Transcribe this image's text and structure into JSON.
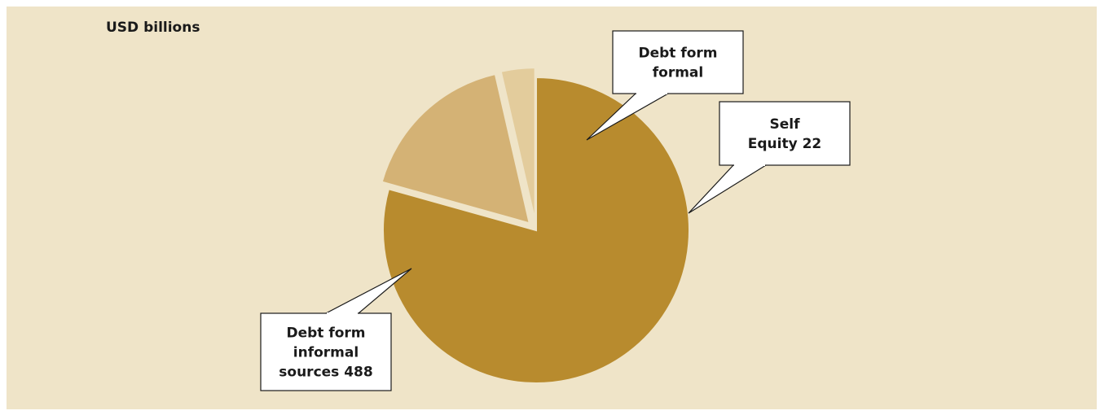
{
  "chart_data": {
    "type": "pie",
    "unit_label": "USD billions",
    "slices": [
      {
        "name": "Debt form informal sources",
        "value": 488,
        "color": "#b88b2e",
        "exploded": false,
        "label_lines": [
          "Debt form",
          "informal",
          "sources 488"
        ]
      },
      {
        "name": "Debt form formal",
        "value": 105,
        "color": "#d4b275",
        "exploded": true,
        "label_lines": [
          "Debt form",
          "formal"
        ]
      },
      {
        "name": "Self Equity",
        "value": 22,
        "color": "#e3cc9c",
        "exploded": true,
        "label_lines": [
          "Self",
          "Equity 22"
        ]
      }
    ],
    "start_angle_deg": 0,
    "direction": "clockwise"
  }
}
